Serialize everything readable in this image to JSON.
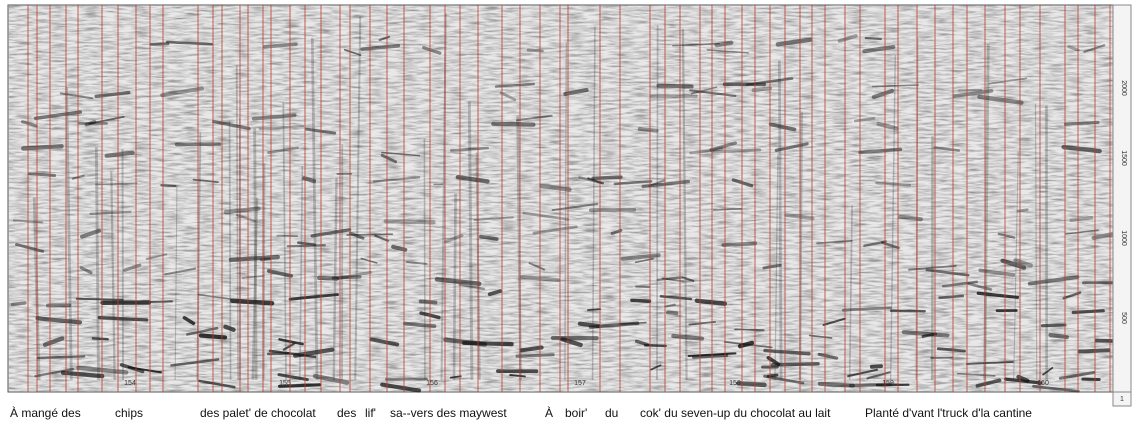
{
  "x_axis": {
    "ticks": [
      "154",
      "155",
      "156",
      "157",
      "158",
      "159",
      "160"
    ]
  },
  "y_axis": {
    "ticks": [
      "500",
      "1000",
      "1500",
      "2000"
    ],
    "corner": "1"
  },
  "transcript": {
    "words": [
      "À mangé des",
      "chips",
      "des palet' de chocolat",
      "des",
      "lif'",
      "sa--vers des maywest",
      "À",
      "boir'",
      "du",
      "cok' du seven-up du chocolat au lait",
      "Planté d'vant l'truck d'la cantine"
    ]
  }
}
